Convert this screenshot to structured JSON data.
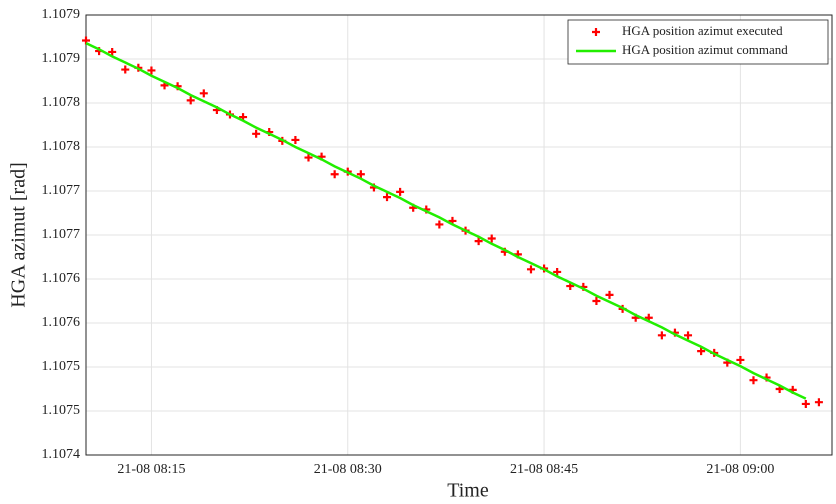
{
  "chart_data": {
    "type": "line",
    "x_label": "Time",
    "y_label": "HGA azimut [rad]",
    "x": [
      "21-08 08:10",
      "21-08 08:11",
      "21-08 08:12",
      "21-08 08:13",
      "21-08 08:14",
      "21-08 08:15",
      "21-08 08:16",
      "21-08 08:17",
      "21-08 08:18",
      "21-08 08:19",
      "21-08 08:20",
      "21-08 08:21",
      "21-08 08:22",
      "21-08 08:23",
      "21-08 08:24",
      "21-08 08:25",
      "21-08 08:26",
      "21-08 08:27",
      "21-08 08:28",
      "21-08 08:29",
      "21-08 08:30",
      "21-08 08:31",
      "21-08 08:32",
      "21-08 08:33",
      "21-08 08:34",
      "21-08 08:35",
      "21-08 08:36",
      "21-08 08:37",
      "21-08 08:38",
      "21-08 08:39",
      "21-08 08:40",
      "21-08 08:41",
      "21-08 08:42",
      "21-08 08:43",
      "21-08 08:44",
      "21-08 08:45",
      "21-08 08:46",
      "21-08 08:47",
      "21-08 08:48",
      "21-08 08:49",
      "21-08 08:50",
      "21-08 08:51",
      "21-08 08:52",
      "21-08 08:53",
      "21-08 08:54",
      "21-08 08:55",
      "21-08 08:56",
      "21-08 08:57",
      "21-08 08:58",
      "21-08 08:59",
      "21-08 09:00",
      "21-08 09:01",
      "21-08 09:02",
      "21-08 09:03",
      "21-08 09:04",
      "21-08 09:05",
      "21-08 09:06"
    ],
    "series": [
      {
        "name": "HGA position azimut executed",
        "kind": "scatter",
        "color": "#ff0000",
        "values": [
          1.107871,
          1.107859,
          1.107858,
          1.107838,
          1.10784,
          1.107837,
          1.10782,
          1.107819,
          1.107803,
          1.107811,
          1.107792,
          1.107787,
          1.107784,
          1.107765,
          1.107767,
          1.107757,
          1.107758,
          1.107738,
          1.107739,
          1.107719,
          1.107722,
          1.107719,
          1.107704,
          1.107693,
          1.107699,
          1.107681,
          1.107679,
          1.107662,
          1.107666,
          1.107655,
          1.107643,
          1.107646,
          1.107631,
          1.107628,
          1.107611,
          1.107612,
          1.107608,
          1.107592,
          1.107591,
          1.107575,
          1.107582,
          1.107566,
          1.107556,
          1.107556,
          1.107536,
          1.107539,
          1.107536,
          1.107518,
          1.107516,
          1.107505,
          1.107508,
          1.107485,
          1.107488,
          1.107475,
          1.107474,
          1.107458,
          1.10746
        ]
      },
      {
        "name": "HGA position azimut command",
        "kind": "line",
        "color": "#22ee00",
        "values": [
          1.107868,
          1.107861,
          1.107853,
          1.107846,
          1.107839,
          1.107831,
          1.107824,
          1.107817,
          1.107809,
          1.107802,
          1.107795,
          1.107787,
          1.10778,
          1.107772,
          1.107765,
          1.107758,
          1.10775,
          1.107743,
          1.107736,
          1.107728,
          1.107721,
          1.107714,
          1.107706,
          1.107699,
          1.107692,
          1.107684,
          1.107677,
          1.10767,
          1.107662,
          1.107655,
          1.107648,
          1.10764,
          1.107633,
          1.107625,
          1.107618,
          1.107611,
          1.107603,
          1.107596,
          1.107589,
          1.107581,
          1.107574,
          1.107567,
          1.107559,
          1.107552,
          1.107545,
          1.107537,
          1.10753,
          1.107523,
          1.107515,
          1.107508,
          1.107501,
          1.107493,
          1.107486,
          1.107479,
          1.107471,
          1.107464,
          null
        ]
      }
    ],
    "xlim": [
      "21-08 08:10",
      "21-08 09:07"
    ],
    "xticks": [
      "21-08 08:15",
      "21-08 08:30",
      "21-08 08:45",
      "21-08 09:00"
    ],
    "ylim": [
      1.1074,
      1.1079
    ],
    "yticks": [
      {
        "value": 1.1074,
        "label": "1.1074"
      },
      {
        "value": 1.10745,
        "label": "1.1075"
      },
      {
        "value": 1.1075,
        "label": "1.1075"
      },
      {
        "value": 1.10755,
        "label": "1.1076"
      },
      {
        "value": 1.1076,
        "label": "1.1076"
      },
      {
        "value": 1.10765,
        "label": "1.1077"
      },
      {
        "value": 1.1077,
        "label": "1.1077"
      },
      {
        "value": 1.10775,
        "label": "1.1078"
      },
      {
        "value": 1.1078,
        "label": "1.1078"
      },
      {
        "value": 1.10785,
        "label": "1.1079"
      },
      {
        "value": 1.1079,
        "label": "1.1079"
      }
    ],
    "grid": true,
    "legend": "top-right"
  }
}
